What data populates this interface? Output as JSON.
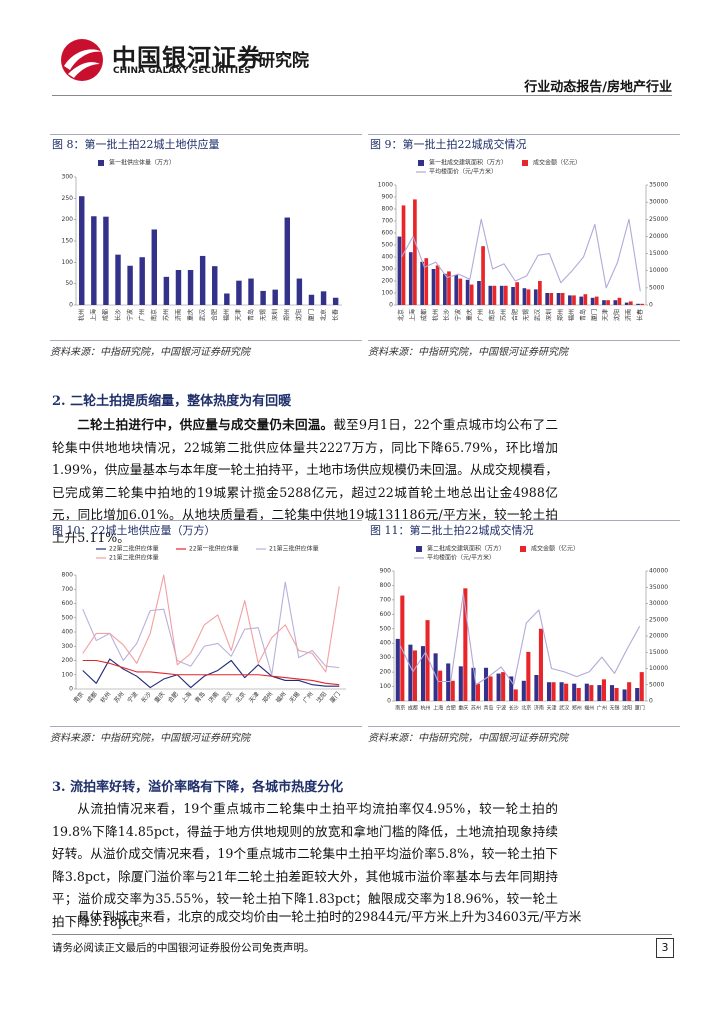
{
  "header": {
    "logo_cn": "中国银河证券",
    "logo_en": "CHINA GALAXY SECURITIES",
    "dept": "研究院",
    "report_type": "行业动态报告/房地产行业"
  },
  "chart_data": [
    {
      "type": "bar",
      "title": "图 8：第一批土拍22城土地供应量",
      "source": "资料来源：中指研究院，中国银河证券研究院",
      "categories": [
        "杭州",
        "上海",
        "成都",
        "长沙",
        "宁波",
        "广州",
        "南京",
        "苏州",
        "济南",
        "重庆",
        "武汉",
        "合肥",
        "福州",
        "天津",
        "青岛",
        "无锡",
        "深圳",
        "郑州",
        "沈阳",
        "厦门",
        "北京",
        "长春"
      ],
      "series": [
        {
          "name": "第一批供应体量（万方）",
          "color": "#33318a",
          "values": [
            255,
            208,
            207,
            118,
            92,
            112,
            177,
            66,
            82,
            82,
            115,
            91,
            27,
            57,
            62,
            33,
            36,
            205,
            62,
            24,
            32,
            17
          ]
        }
      ],
      "ylim": [
        0,
        300
      ],
      "yticks": [
        0,
        50,
        100,
        150,
        200,
        250,
        300
      ]
    },
    {
      "type": "combo",
      "title": "图 9：第一批土拍22城成交情况",
      "source": "资料来源：中指研究院，中国银河证券研究院",
      "categories": [
        "北京",
        "上海",
        "成都",
        "杭州",
        "长沙",
        "宁波",
        "重庆",
        "广州",
        "南京",
        "苏州",
        "合肥",
        "无锡",
        "武汉",
        "深圳",
        "郑州",
        "福州",
        "青岛",
        "厦门",
        "天津",
        "沈阳",
        "济南",
        "长春"
      ],
      "series": [
        {
          "name": "第一批成交建筑面积（万方）",
          "color": "#33318a",
          "values": [
            570,
            440,
            360,
            300,
            260,
            250,
            210,
            200,
            160,
            160,
            150,
            140,
            130,
            100,
            100,
            80,
            70,
            60,
            40,
            40,
            20,
            10
          ]
        },
        {
          "name": "成交金额（亿元）",
          "color": "#e8262a",
          "values": [
            830,
            880,
            390,
            330,
            280,
            220,
            170,
            490,
            160,
            160,
            190,
            130,
            200,
            100,
            100,
            80,
            90,
            70,
            40,
            60,
            30,
            10
          ]
        },
        {
          "name": "平均楼面价（元/平方米）",
          "color": "#b3a8d9",
          "axis": "y2",
          "values": [
            14000,
            20000,
            11000,
            12500,
            8000,
            9000,
            7500,
            25000,
            10500,
            12000,
            7000,
            8500,
            14500,
            15000,
            6500,
            10000,
            14000,
            23500,
            5000,
            12500,
            25000,
            4000
          ]
        }
      ],
      "ylim": [
        0,
        1000
      ],
      "yticks": [
        0,
        100,
        200,
        300,
        400,
        500,
        600,
        700,
        800,
        900,
        1000
      ],
      "y2lim": [
        0,
        35000
      ],
      "y2ticks": [
        0,
        5000,
        10000,
        15000,
        20000,
        25000,
        30000,
        35000
      ]
    },
    {
      "type": "line",
      "title": "图 10：22城土地供应量（万方）",
      "source": "资料来源：中指研究院，中国银河证券研究院",
      "categories": [
        "南京",
        "成都",
        "杭州",
        "苏州",
        "宁波",
        "长沙",
        "重庆",
        "合肥",
        "上海",
        "青岛",
        "济南",
        "武汉",
        "北京",
        "天津",
        "郑州",
        "福州",
        "无锡",
        "广州",
        "沈阳",
        "厦门"
      ],
      "series": [
        {
          "name": "22第二批供应体量",
          "color": "#1f2a7a",
          "values": [
            130,
            40,
            210,
            140,
            90,
            10,
            70,
            100,
            10,
            90,
            130,
            200,
            80,
            170,
            90,
            60,
            60,
            30,
            20,
            20
          ]
        },
        {
          "name": "22第一批供应体量",
          "color": "#e3262c",
          "values": [
            200,
            200,
            180,
            150,
            120,
            120,
            110,
            100,
            100,
            100,
            100,
            100,
            100,
            100,
            90,
            80,
            70,
            60,
            40,
            30
          ]
        },
        {
          "name": "21第三批供应体量",
          "color": "#b8b0dc",
          "values": [
            560,
            340,
            390,
            200,
            320,
            550,
            560,
            200,
            160,
            300,
            320,
            230,
            420,
            430,
            100,
            750,
            220,
            270,
            160,
            150
          ]
        },
        {
          "name": "21第二批供应体量",
          "color": "#f2a0a0",
          "values": [
            250,
            390,
            390,
            310,
            180,
            390,
            800,
            170,
            250,
            450,
            520,
            270,
            620,
            180,
            360,
            450,
            270,
            250,
            120,
            720
          ]
        }
      ],
      "ylim": [
        0,
        800
      ],
      "yticks": [
        0,
        100,
        200,
        300,
        400,
        500,
        600,
        700,
        800
      ]
    },
    {
      "type": "combo",
      "title": "图 11：第二批土拍22城成交情况",
      "source": "资料来源：中指研究院，中国银河证券研究院",
      "categories": [
        "南京",
        "成都",
        "杭州",
        "上海",
        "合肥",
        "重庆",
        "苏州",
        "青岛",
        "宁波",
        "长沙",
        "北京",
        "济南",
        "天津",
        "武汉",
        "郑州",
        "福州",
        "广州",
        "无锡",
        "沈阳",
        "厦门"
      ],
      "series": [
        {
          "name": "第二批成交建筑面积（万方）",
          "color": "#33318a",
          "values": [
            430,
            390,
            380,
            330,
            260,
            240,
            230,
            230,
            190,
            170,
            140,
            180,
            130,
            130,
            120,
            120,
            110,
            110,
            80,
            90
          ]
        },
        {
          "name": "成交金额（亿元）",
          "color": "#e8262a",
          "values": [
            730,
            350,
            560,
            210,
            140,
            780,
            120,
            170,
            200,
            80,
            340,
            500,
            130,
            120,
            90,
            110,
            150,
            90,
            130,
            200
          ]
        },
        {
          "name": "平均楼面价（元/平方米）",
          "color": "#b3a8d9",
          "axis": "y2",
          "values": [
            17000,
            9000,
            15000,
            6000,
            6000,
            33000,
            5000,
            7500,
            10500,
            5000,
            24000,
            28000,
            10000,
            9000,
            7500,
            9000,
            13500,
            8500,
            16000,
            23000
          ]
        }
      ],
      "ylim": [
        0,
        900
      ],
      "yticks": [
        0,
        100,
        200,
        300,
        400,
        500,
        600,
        700,
        800,
        900
      ],
      "y2lim": [
        0,
        40000
      ],
      "y2ticks": [
        0,
        5000,
        10000,
        15000,
        20000,
        25000,
        30000,
        35000,
        40000
      ]
    }
  ],
  "section2": {
    "heading": "2. 二轮土拍提质缩量，整体热度为有回暖",
    "lead": "二轮土拍进行中，供应量与成交量仍未回温。",
    "text": "截至9月1日，22个重点城市均公布了二轮集中供地地块情况，22城第二批供应体量共2227万方，同比下降65.79%，环比增加1.99%，供应量基本与本年度一轮土拍持平，土地市场供应规模仍未回温。从成交规模看，已完成第二轮集中拍地的19城累计揽金5288亿元，超过22城首轮土地总出让金4988亿元，同比增加6.01%。从地块质量看，二轮集中供地19城131186元/平方米，较一轮土拍上升5.11%。"
  },
  "section3": {
    "heading": "3. 流拍率好转，溢价率略有下降，各城市热度分化",
    "paragraphs": [
      "从流拍情况来看，19个重点城市二轮集中土拍平均流拍率仅4.95%，较一轮土拍的19.8%下降14.85pct，得益于地方供地规则的放宽和拿地门槛的降低，土地流拍现象持续好转。从溢价成交情况来看，19个重点城市二轮集中土拍平均溢价率5.8%，较一轮土拍下降3.8pct，除厦门溢价率与21年二轮土拍差距较大外，其他城市溢价率基本与去年同期持平；溢价成交率为35.55%，较一轮土拍下降1.83pct；触限成交率为18.96%，较一轮土拍下降3.18pct。",
      "具体到城市来看，北京的成交均价由一轮土拍时的29844元/平方米上升为34603元/平方米"
    ]
  },
  "footer": {
    "disclaimer": "请务必阅读正文最后的中国银河证券股份公司免责声明。",
    "page": "3"
  }
}
